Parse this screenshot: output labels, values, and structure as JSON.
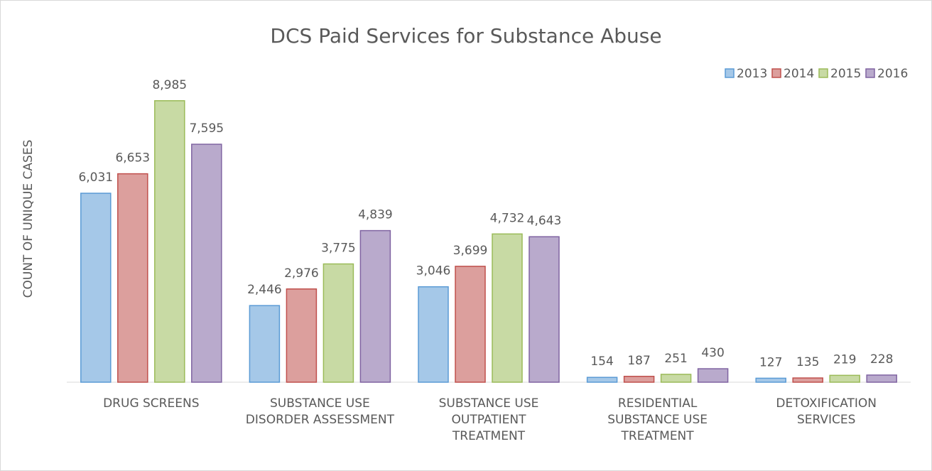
{
  "chart_data": {
    "type": "bar",
    "title": "DCS Paid Services for Substance Abuse",
    "ylabel": "COUNT OF UNIQUE CASES",
    "categories": [
      "DRUG SCREENS",
      "SUBSTANCE USE\nDISORDER ASSESSMENT",
      "SUBSTANCE USE\nOUTPATIENT\nTREATMENT",
      "RESIDENTIAL\nSUBSTANCE USE\nTREATMENT",
      "DETOXIFICATION\nSERVICES"
    ],
    "series": [
      {
        "name": "2013",
        "color": "#5b9bd5",
        "values": [
          6031,
          2446,
          3046,
          154,
          127
        ],
        "value_labels": [
          "6,031",
          "2,446",
          "3,046",
          "154",
          "127"
        ]
      },
      {
        "name": "2014",
        "color": "#c0504d",
        "values": [
          6653,
          2976,
          3699,
          187,
          135
        ],
        "value_labels": [
          "6,653",
          "2,976",
          "3,699",
          "187",
          "135"
        ]
      },
      {
        "name": "2015",
        "color": "#9bbb59",
        "values": [
          8985,
          3775,
          4732,
          251,
          219
        ],
        "value_labels": [
          "8,985",
          "3,775",
          "4,732",
          "251",
          "219"
        ]
      },
      {
        "name": "2016",
        "color": "#8064a2",
        "values": [
          7595,
          4839,
          4643,
          430,
          228
        ],
        "value_labels": [
          "7,595",
          "4,839",
          "4,643",
          "430",
          "228"
        ]
      }
    ],
    "ylim": [
      0,
      10000
    ],
    "legend": "top-right"
  }
}
